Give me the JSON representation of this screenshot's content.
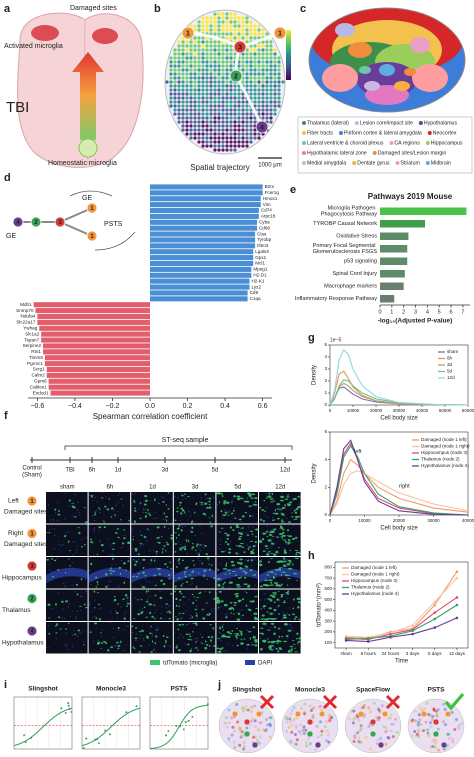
{
  "figure": {
    "node_colors": {
      "1": "#f0953a",
      "2": "#3aa35a",
      "3": "#d43a3a",
      "4": "#6b3d8f"
    },
    "a": {
      "label": "a",
      "activated": "Activated microglia",
      "damaged": "Damaged sites",
      "tbi": "TBI",
      "homeostatic": "Homeostatic microglia"
    },
    "b": {
      "label": "b",
      "title": "Spatial trajectory",
      "scale": "1000 μm",
      "nodes": [
        "1",
        "3",
        "1",
        "2",
        "4"
      ]
    },
    "c": {
      "label": "c",
      "regions": [
        {
          "name": "Thalamus (lateral)",
          "color": "#3d8f4a"
        },
        {
          "name": "Lesion core/impact site",
          "color": "#b8b8e8"
        },
        {
          "name": "Hypothalamus",
          "color": "#6a3d9a"
        },
        {
          "name": "Fiber tracts",
          "color": "#f2c14e"
        },
        {
          "name": "Piriform cortex & lateral amygdala",
          "color": "#3b7dd8"
        },
        {
          "name": "Neocortex",
          "color": "#d62728"
        },
        {
          "name": "Lateral ventricle & choroid plexus",
          "color": "#6ec6a8"
        },
        {
          "name": "CA regions",
          "color": "#e8a0c8"
        },
        {
          "name": "Hippocampus",
          "color": "#9acd5a"
        },
        {
          "name": "Hypothalamic lateral zone",
          "color": "#e377c2"
        },
        {
          "name": "Damaged sites/Lesion margin",
          "color": "#f08c3a"
        },
        {
          "name": "Medial amygdala",
          "color": "#c7b8e0"
        },
        {
          "name": "Dentate gyrus",
          "color": "#f5b041"
        },
        {
          "name": "Striatum",
          "color": "#ff9ea0"
        },
        {
          "name": "Midbrain",
          "color": "#5dade2"
        }
      ]
    },
    "d": {
      "label": "d",
      "nodes": [
        "4",
        "2",
        "3",
        "1",
        "1"
      ],
      "ge_top": "GE",
      "ge_left": "GE",
      "psts": "PSTS"
    },
    "e": {
      "label": "e"
    },
    "f": {
      "label": "f",
      "timeline_title": "ST-seq sample",
      "control": [
        "Control",
        "(Sham)"
      ],
      "timeline": [
        "TBI",
        "6h",
        "1d",
        "3d",
        "5d",
        "12d"
      ],
      "columns": [
        "sham",
        "6h",
        "1d",
        "3d",
        "5d",
        "12d"
      ],
      "rows": [
        {
          "node": "1",
          "label": [
            "Left",
            "Damaged sites"
          ]
        },
        {
          "node": "1",
          "label": [
            "Right",
            "Damaged sites"
          ]
        },
        {
          "node": "3",
          "label": [
            "Hippocampus"
          ]
        },
        {
          "node": "2",
          "label": [
            "Thalamus"
          ]
        },
        {
          "node": "4",
          "label": [
            "Hypothalamus"
          ]
        }
      ],
      "legend": [
        {
          "name": "tdTomato (microglia)",
          "color": "#3ec46d"
        },
        {
          "name": "DAPI",
          "color": "#2b3fa8"
        }
      ]
    },
    "g": {
      "label": "g"
    },
    "h": {
      "label": "h"
    },
    "i": {
      "label": "i",
      "methods": [
        "Slingshot",
        "Monocle3",
        "PSTS"
      ]
    },
    "j": {
      "label": "j",
      "methods": [
        "Slingshot",
        "Monocle3",
        "SpaceFlow",
        "PSTS"
      ]
    }
  },
  "chart_data": [
    {
      "type": "bar",
      "orientation": "horizontal",
      "xlabel": "Spearman correlation coefficient",
      "categories": [
        "B2m",
        "Fcer1g",
        "Hmox1",
        "Vim",
        "Cd74",
        "Arpc1b",
        "Cyba",
        "Cd68",
        "Ctss",
        "Tyrobp",
        "Ifitm3",
        "Lgals3",
        "Gpx1",
        "Mcl1",
        "Mpeg1",
        "H2-D1",
        "H2-K1",
        "Lyz2",
        "Cd9",
        "C1qa",
        "Mdh1",
        "Snrnp70",
        "Ndufa4",
        "Slc22a17",
        "Ywhag",
        "Slc1a2",
        "Tspan7",
        "Serpine2",
        "Rtn1",
        "Timm8",
        "Pgrmc1",
        "Scrg1",
        "Calm2",
        "Gpm6",
        "Cables1",
        "Endod1"
      ],
      "values": [
        0.6,
        0.6,
        0.59,
        0.59,
        0.58,
        0.58,
        0.57,
        0.57,
        0.56,
        0.56,
        0.56,
        0.55,
        0.55,
        0.55,
        0.54,
        0.54,
        0.53,
        0.53,
        0.52,
        0.52,
        -0.62,
        -0.61,
        -0.6,
        -0.6,
        -0.59,
        -0.58,
        -0.58,
        -0.57,
        -0.57,
        -0.56,
        -0.56,
        -0.55,
        -0.55,
        -0.54,
        -0.54,
        -0.53
      ],
      "colors": [
        "#e25e6d",
        "#4a8fd6"
      ],
      "xlim": [
        -0.65,
        0.65
      ],
      "xticks": [
        {
          "value": -0.6,
          "label": "−0.6"
        },
        {
          "value": -0.4,
          "label": "−0.4"
        },
        {
          "value": -0.2,
          "label": "−0.2"
        },
        {
          "value": 0,
          "label": "0.0"
        },
        0.2,
        0.4,
        0.6
      ]
    },
    {
      "type": "bar",
      "orientation": "horizontal",
      "title": "Pathways 2019 Mouse",
      "xlabel": "-log₁₀(Adjusted P-value)",
      "categories": [
        "Microglia Pathogen Phagocytosis Pathway",
        "TYROBP Causal Network",
        "Oxidative Stress",
        "Primary Focal Segmental Glomerulosclerosis FSGS",
        "p53 signaling",
        "Spinal Cord Injury",
        "Macrophage markers",
        "Inflammatory Response Pathway"
      ],
      "values": [
        7.3,
        3.8,
        2.4,
        2.3,
        2.3,
        2.1,
        2.0,
        1.2
      ],
      "colors": [
        "#4cc24a",
        "#3f9e4a",
        "#5e8c6a",
        "#5e8c6a",
        "#5e8c6a",
        "#5e8c6a",
        "#6b7d70",
        "#6b7d70"
      ],
      "xlim": [
        0,
        7.6
      ],
      "xticks": [
        0,
        1,
        2,
        3,
        4,
        5,
        6,
        7
      ]
    },
    {
      "type": "line",
      "xlabel": "Cell body size",
      "ylabel": "Density",
      "scale_label": "1e−5",
      "x": [
        0,
        2000,
        4000,
        6000,
        8000,
        10000,
        14000,
        20000,
        30000,
        45000,
        60000
      ],
      "series": [
        {
          "name": "sham",
          "color": "#7b6fb0",
          "values": [
            0,
            0.6,
            1.4,
            1.5,
            1.2,
            0.9,
            0.5,
            0.25,
            0.1,
            0.03,
            0
          ]
        },
        {
          "name": "6h",
          "color": "#f08c5a",
          "values": [
            0,
            1.0,
            2.6,
            2.8,
            2.2,
            1.5,
            0.8,
            0.35,
            0.1,
            0.02,
            0
          ]
        },
        {
          "name": "3d",
          "color": "#b5a46a",
          "values": [
            0,
            0.6,
            1.5,
            1.8,
            1.6,
            1.2,
            0.7,
            0.35,
            0.12,
            0.04,
            0
          ]
        },
        {
          "name": "5d",
          "color": "#6fbf8f",
          "values": [
            0,
            0.5,
            1.6,
            2.1,
            2.0,
            1.6,
            1.0,
            0.5,
            0.2,
            0.05,
            0
          ]
        },
        {
          "name": "12d",
          "color": "#8fd6e0",
          "values": [
            0,
            1.2,
            3.8,
            4.6,
            4.2,
            3.0,
            1.6,
            0.7,
            0.2,
            0.05,
            0
          ]
        }
      ],
      "xlim": [
        0,
        60000
      ],
      "xticks": [
        0,
        10000,
        20000,
        30000,
        40000,
        50000,
        60000
      ],
      "ylim": [
        0,
        5
      ],
      "yticks": [
        0,
        1,
        2,
        3,
        4,
        5
      ]
    },
    {
      "type": "line",
      "xlabel": "Cell body size",
      "ylabel": "Density",
      "annotations": [
        "left",
        "right"
      ],
      "x": [
        0,
        2000,
        4000,
        6000,
        8000,
        10000,
        14000,
        20000,
        30000,
        40000
      ],
      "series": [
        {
          "name": "Damaged (node 1 left)",
          "color": "#f39a6b",
          "values": [
            0,
            1,
            3,
            4,
            3.6,
            3,
            2,
            1.2,
            0.5,
            0.2
          ]
        },
        {
          "name": "Damaged (node 1 right)",
          "color": "#fcc3a0",
          "values": [
            0,
            0.8,
            2.2,
            3,
            3.2,
            3,
            2.4,
            1.6,
            0.8,
            0.3
          ]
        },
        {
          "name": "Hippocampus (node 3)",
          "color": "#e34a6f",
          "values": [
            0,
            1.8,
            4.4,
            5.2,
            4,
            2.6,
            1.2,
            0.5,
            0.1,
            0
          ]
        },
        {
          "name": "Thalamus (node 2)",
          "color": "#3a9e6b",
          "values": [
            0,
            1.5,
            4.2,
            5,
            4.2,
            3,
            1.5,
            0.6,
            0.15,
            0
          ]
        },
        {
          "name": "Hypothalamus (node 4)",
          "color": "#6a3d9a",
          "values": [
            0,
            2,
            4.8,
            5.4,
            4,
            2.4,
            1,
            0.3,
            0.05,
            0
          ]
        }
      ],
      "xlim": [
        0,
        40000
      ],
      "xticks": [
        0,
        10000,
        20000,
        30000,
        40000
      ],
      "ylim": [
        0,
        6
      ],
      "yticks": [
        0,
        2,
        4,
        6
      ]
    },
    {
      "type": "line",
      "xlabel": "Time",
      "ylabel": "tdTomato⁺(mm²)",
      "categories": [
        "sham",
        "6 hours",
        "24 hours",
        "3 days",
        "5 days",
        "12 days"
      ],
      "series": [
        {
          "name": "Damaged (node 1 left)",
          "color": "#f39a6b",
          "values": [
            150,
            140,
            200,
            230,
            450,
            760
          ]
        },
        {
          "name": "Damaged (node 1 right)",
          "color": "#fcc3a0",
          "values": [
            160,
            150,
            190,
            260,
            480,
            700
          ]
        },
        {
          "name": "Hippocampus (node 3)",
          "color": "#e34a6f",
          "values": [
            140,
            130,
            180,
            220,
            380,
            520
          ]
        },
        {
          "name": "Thalamus (node 2)",
          "color": "#3a9e6b",
          "values": [
            130,
            140,
            160,
            210,
            320,
            450
          ]
        },
        {
          "name": "Hypothalamus (node 4)",
          "color": "#6a3d9a",
          "values": [
            120,
            110,
            150,
            180,
            240,
            330
          ]
        }
      ],
      "ylim": [
        50,
        850
      ],
      "yticks": [
        100,
        200,
        300,
        400,
        500,
        600,
        700,
        800
      ]
    }
  ]
}
